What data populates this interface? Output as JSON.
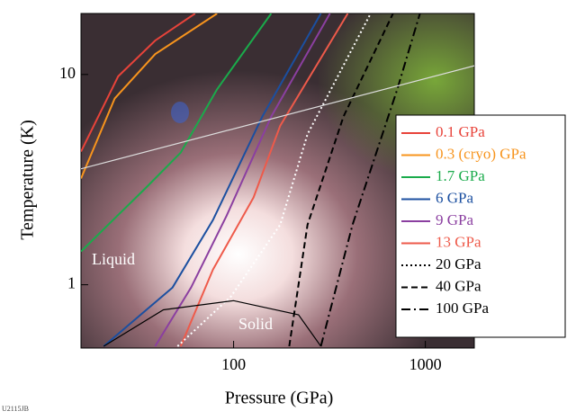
{
  "chart_data": {
    "type": "line",
    "log_x": true,
    "log_y": true,
    "xlabel": "Pressure (GPa)",
    "ylabel": "Temperature (K)",
    "xlim": [
      16,
      1800
    ],
    "ylim": [
      0.5,
      19.5
    ],
    "xticks": [
      100,
      1000
    ],
    "yticks": [
      1,
      10
    ],
    "annotations": [
      "Liquid",
      "Solid",
      "U2115JB"
    ],
    "legend": "right",
    "series": [
      {
        "name": "0.1 GPa",
        "color": "#e8433a",
        "dash": "solid",
        "x": [
          16,
          25,
          39,
          63
        ],
        "values": [
          4.3,
          9.8,
          14.5,
          19.5
        ]
      },
      {
        "name": "0.3 (cryo) GPa",
        "color": "#f7941d",
        "dash": "solid",
        "x": [
          16,
          24,
          39,
          82
        ],
        "values": [
          3.2,
          7.7,
          12.5,
          19.5
        ]
      },
      {
        "name": "1.7 GPa",
        "color": "#1aab4b",
        "dash": "solid",
        "x": [
          16,
          35,
          53,
          82,
          157
        ],
        "values": [
          1.44,
          2.9,
          4.25,
          8.5,
          19.5
        ]
      },
      {
        "name": "6 GPa",
        "color": "#1b4fa0",
        "dash": "solid",
        "x": [
          21,
          48,
          78,
          141,
          285
        ],
        "values": [
          0.51,
          0.97,
          2.03,
          6.3,
          19.5
        ]
      },
      {
        "name": "9 GPa",
        "color": "#8b3fa0",
        "dash": "solid",
        "x": [
          39,
          60,
          92,
          157,
          318
        ],
        "values": [
          0.51,
          0.97,
          2.13,
          6.3,
          19.5
        ]
      },
      {
        "name": "13 GPa",
        "color": "#ee5a4a",
        "dash": "solid",
        "x": [
          53,
          78,
          127,
          175,
          394
        ],
        "values": [
          0.51,
          1.18,
          2.6,
          5.7,
          19.5
        ]
      },
      {
        "name": "20 GPa",
        "color": "#ffffff",
        "dash": "dotted",
        "x": [
          51,
          97,
          175,
          243,
          518
        ],
        "values": [
          0.51,
          0.88,
          1.93,
          5.2,
          19.5
        ]
      },
      {
        "name": "40 GPa",
        "color": "#000000",
        "dash": "dashed",
        "x": [
          195,
          243,
          374,
          678
        ],
        "values": [
          0.51,
          1.93,
          6.3,
          19.5
        ]
      },
      {
        "name": "100 GPa",
        "color": "#000000",
        "dash": "dashdot",
        "x": [
          285,
          417,
          714,
          937
        ],
        "values": [
          0.51,
          1.93,
          8.5,
          19.5
        ]
      },
      {
        "color": "#000000",
        "dash": "solid",
        "x": [
          21,
          43,
          100,
          218,
          285
        ],
        "values": [
          0.51,
          0.76,
          0.84,
          0.72,
          0.51
        ]
      },
      {
        "color": "#dddddd",
        "dash": "solid",
        "x": [
          16,
          1800
        ],
        "values": [
          3.56,
          11
        ]
      }
    ]
  }
}
